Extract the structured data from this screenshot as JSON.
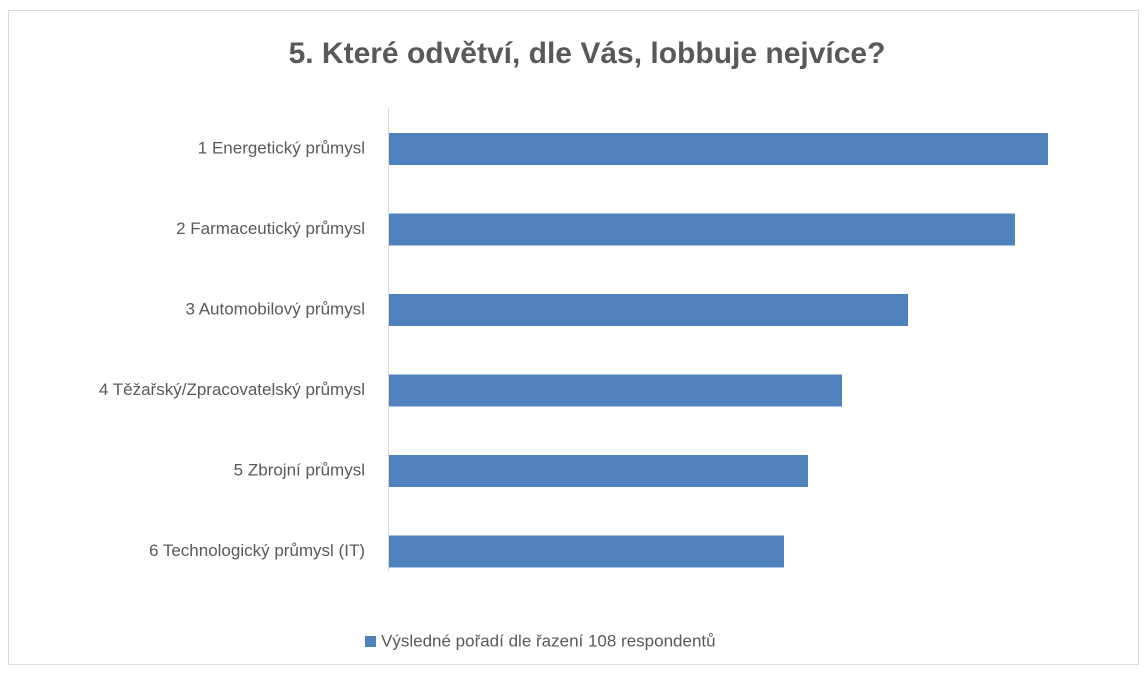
{
  "chart_data": {
    "type": "hbar",
    "title": "5. Které odvětví, dle Vás, lobbuje nejvíce?",
    "categories": [
      "1 Energetický průmysl",
      "2 Farmaceutický průmysl",
      "3 Automobilový průmysl",
      "4 Těžařský/Zpracovatelský průmysl",
      "5 Zbrojní průmysl",
      "6 Technologický průmysl (IT)"
    ],
    "series": [
      {
        "name": "Výsledné pořadí dle řazení 108 respondentů",
        "color": "#4f81bd",
        "values": [
          659,
          626,
          519,
          453,
          419,
          395
        ]
      }
    ],
    "legend": "bottom"
  }
}
